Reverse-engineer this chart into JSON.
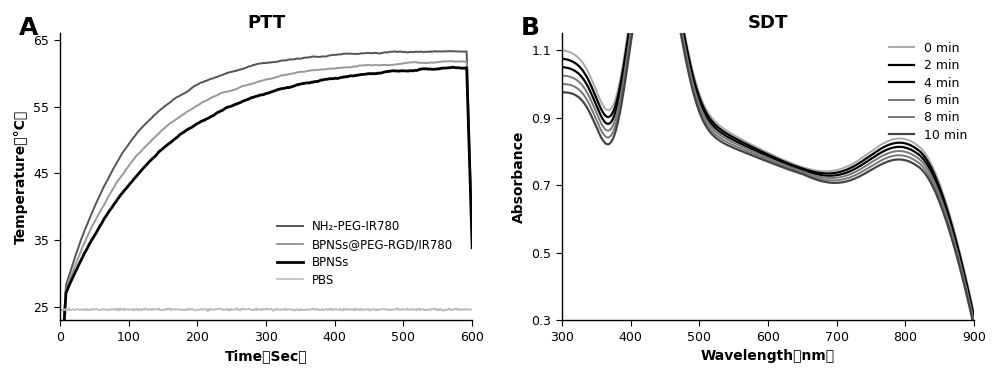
{
  "panel_A": {
    "title": "PTT",
    "xlabel": "Time（Sec）",
    "ylabel": "Temperature（°C）",
    "xlim": [
      0,
      600
    ],
    "ylim": [
      23,
      66
    ],
    "yticks": [
      25,
      35,
      45,
      55,
      65
    ],
    "xticks": [
      0,
      100,
      200,
      300,
      400,
      500,
      600
    ],
    "panel_label": "A",
    "legend": [
      {
        "label": "NH₂-PEG-IR780",
        "color": "#555555",
        "lw": 1.4
      },
      {
        "label": "BPNSs@PEG-RGD/IR780",
        "color": "#999999",
        "lw": 1.4
      },
      {
        "label": "BPNSs",
        "color": "#000000",
        "lw": 2.0
      },
      {
        "label": "PBS",
        "color": "#bbbbbb",
        "lw": 1.2
      }
    ]
  },
  "panel_B": {
    "title": "SDT",
    "xlabel": "Wavelength（nm）",
    "ylabel": "Absorbance",
    "xlim": [
      300,
      900
    ],
    "ylim": [
      0.3,
      1.15
    ],
    "yticks": [
      0.3,
      0.5,
      0.7,
      0.9,
      1.1
    ],
    "xticks": [
      300,
      400,
      500,
      600,
      700,
      800,
      900
    ],
    "panel_label": "B",
    "legend": [
      {
        "label": "0 min",
        "color": "#aaaaaa",
        "lw": 1.4
      },
      {
        "label": "2 min",
        "color": "#000000",
        "lw": 1.6
      },
      {
        "label": "4 min",
        "color": "#000000",
        "lw": 1.6
      },
      {
        "label": "6 min",
        "color": "#777777",
        "lw": 1.4
      },
      {
        "label": "8 min",
        "color": "#777777",
        "lw": 1.4
      },
      {
        "label": "10 min",
        "color": "#444444",
        "lw": 1.6
      }
    ],
    "scale_offsets": [
      0.0,
      -0.025,
      -0.05,
      -0.075,
      -0.1,
      -0.125
    ]
  }
}
